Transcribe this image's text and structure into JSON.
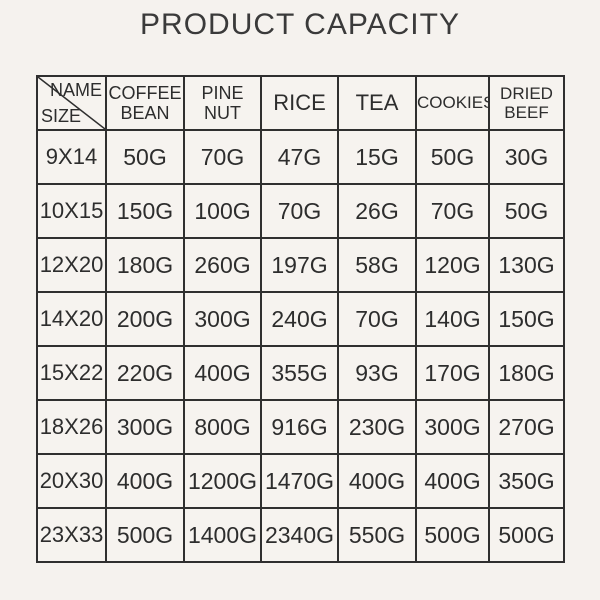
{
  "title": "PRODUCT CAPACITY",
  "colors": {
    "background": "#f5f2ee",
    "border": "#2f2f2f",
    "text": "#2d2d2d"
  },
  "chart_data": {
    "type": "table",
    "title": "PRODUCT CAPACITY",
    "corner": {
      "top_right": "NAME",
      "bottom_left": "SIZE"
    },
    "columns": [
      "COFFEE BEAN",
      "PINE NUT",
      "RICE",
      "TEA",
      "COOKIES",
      "DRIED BEEF"
    ],
    "rows": [
      {
        "size": "9X14",
        "values": [
          "50G",
          "70G",
          "47G",
          "15G",
          "50G",
          "30G"
        ]
      },
      {
        "size": "10X15",
        "values": [
          "150G",
          "100G",
          "70G",
          "26G",
          "70G",
          "50G"
        ]
      },
      {
        "size": "12X20",
        "values": [
          "180G",
          "260G",
          "197G",
          "58G",
          "120G",
          "130G"
        ]
      },
      {
        "size": "14X20",
        "values": [
          "200G",
          "300G",
          "240G",
          "70G",
          "140G",
          "150G"
        ]
      },
      {
        "size": "15X22",
        "values": [
          "220G",
          "400G",
          "355G",
          "93G",
          "170G",
          "180G"
        ]
      },
      {
        "size": "18X26",
        "values": [
          "300G",
          "800G",
          "916G",
          "230G",
          "300G",
          "270G"
        ]
      },
      {
        "size": "20X30",
        "values": [
          "400G",
          "1200G",
          "1470G",
          "400G",
          "400G",
          "350G"
        ]
      },
      {
        "size": "23X33",
        "values": [
          "500G",
          "1400G",
          "2340G",
          "550G",
          "500G",
          "500G"
        ]
      }
    ]
  }
}
